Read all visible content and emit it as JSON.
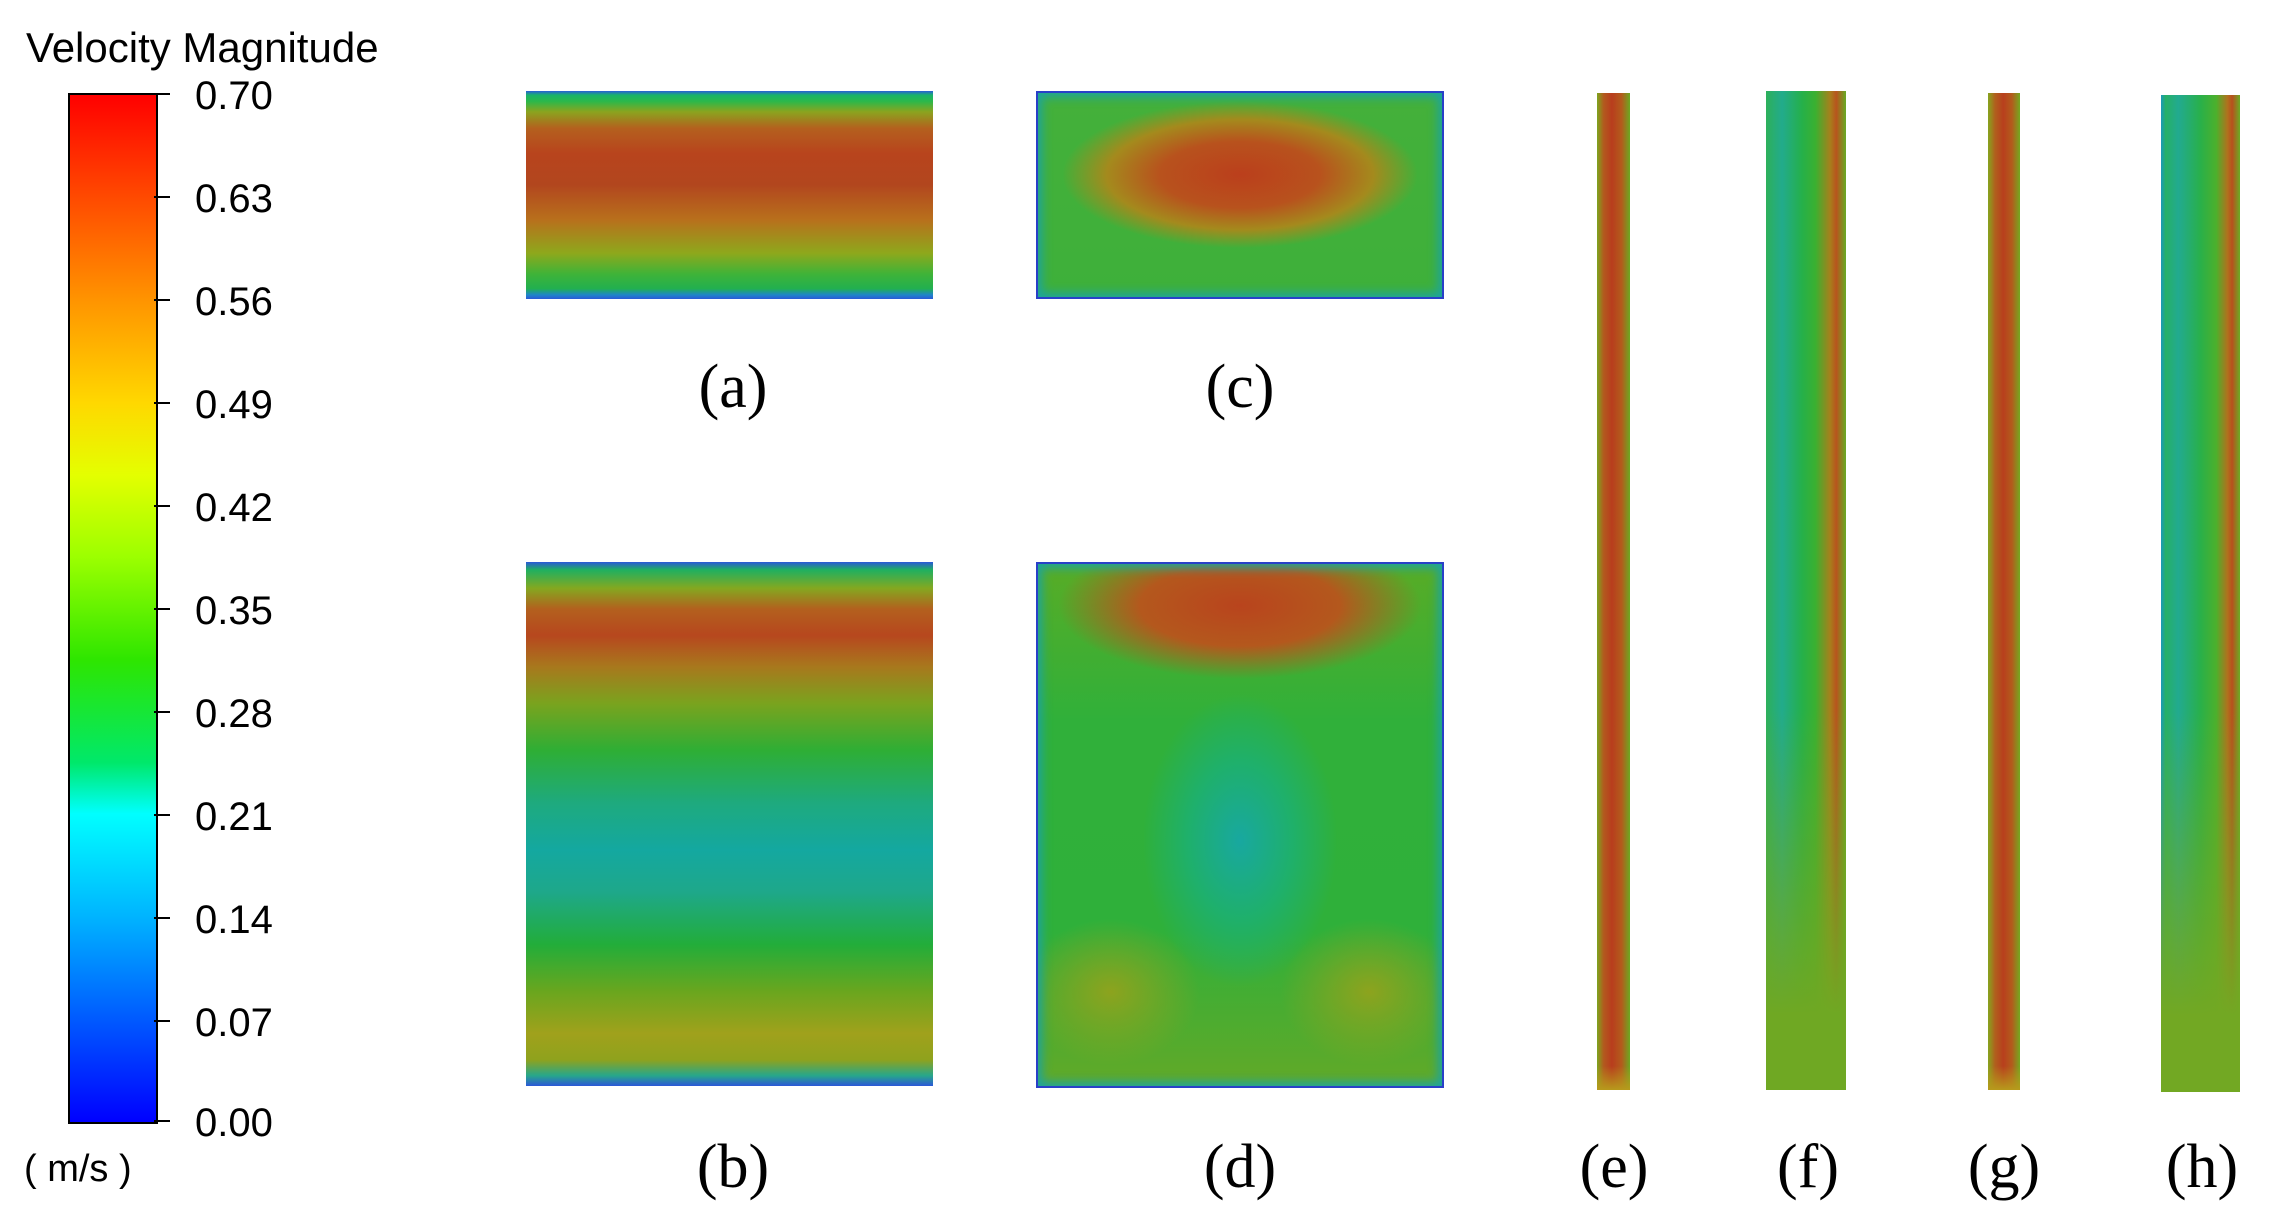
{
  "legend": {
    "title": "Velocity Magnitude",
    "ticks": [
      "0.70",
      "0.63",
      "0.56",
      "0.49",
      "0.42",
      "0.35",
      "0.28",
      "0.21",
      "0.14",
      "0.07",
      "0.00"
    ],
    "unit": "( m/s )",
    "colors": [
      "#ff0000",
      "#ff9400",
      "#e4ff00",
      "#2ee600",
      "#00ffff",
      "#005aff",
      "#0000ff"
    ]
  },
  "panels": [
    {
      "label": "(a)"
    },
    {
      "label": "(b)"
    },
    {
      "label": "(c)"
    },
    {
      "label": "(d)"
    },
    {
      "label": "(e)"
    },
    {
      "label": "(f)"
    },
    {
      "label": "(g)"
    },
    {
      "label": "(h)"
    }
  ]
}
